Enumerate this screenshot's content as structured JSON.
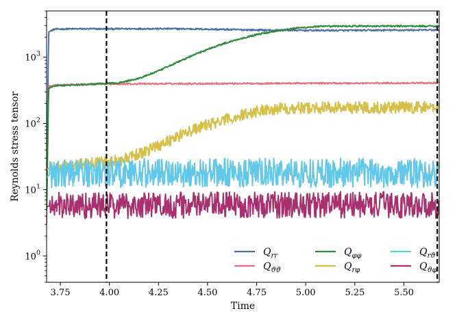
{
  "chart_data": {
    "type": "line",
    "title": "",
    "xlabel": "Time",
    "ylabel": "Reynolds stress tensor",
    "xlim": [
      3.68,
      5.68
    ],
    "ylim": [
      0.4,
      5000
    ],
    "yscale": "log",
    "grid": false,
    "legend_position": "bottom-right",
    "x_ticks": [
      3.75,
      4.0,
      4.25,
      4.5,
      4.75,
      5.0,
      5.25,
      5.5
    ],
    "x_tick_labels": [
      "3.75",
      "4.00",
      "4.25",
      "4.50",
      "4.75",
      "5.00",
      "5.25",
      "5.50"
    ],
    "y_ticks": [
      1,
      10,
      100,
      1000
    ],
    "y_tick_labels": [
      {
        "base": "10",
        "exp": "0"
      },
      {
        "base": "10",
        "exp": "1"
      },
      {
        "base": "10",
        "exp": "2"
      },
      {
        "base": "10",
        "exp": "3"
      }
    ],
    "vlines": [
      3.985,
      5.67
    ],
    "series": [
      {
        "name": "Q_rr",
        "label_main": "Q",
        "label_sub": "rr",
        "color": "#4a6fa5",
        "noise": 0.012,
        "x": [
          3.68,
          3.69,
          3.72,
          3.8,
          4.0,
          4.2,
          4.4,
          4.6,
          4.8,
          5.0,
          5.2,
          5.4,
          5.68
        ],
        "y": [
          5,
          2400,
          2650,
          2680,
          2680,
          2700,
          2680,
          2620,
          2560,
          2540,
          2540,
          2560,
          2580
        ]
      },
      {
        "name": "Q_ϑϑ",
        "label_main": "Q",
        "label_sub": "ϑϑ",
        "color": "#e8707e",
        "noise": 0.012,
        "x": [
          3.68,
          3.69,
          3.72,
          4.0,
          4.25,
          4.5,
          4.75,
          5.0,
          5.25,
          5.5,
          5.68
        ],
        "y": [
          3,
          360,
          380,
          395,
          398,
          400,
          402,
          405,
          405,
          408,
          410
        ]
      },
      {
        "name": "Q_φφ",
        "label_main": "Q",
        "label_sub": "φφ",
        "color": "#2e8b3a",
        "noise": 0.012,
        "x": [
          3.68,
          3.69,
          3.72,
          3.9,
          4.05,
          4.15,
          4.25,
          4.35,
          4.45,
          4.55,
          4.65,
          4.75,
          4.85,
          4.95,
          5.05,
          5.2,
          5.4,
          5.68
        ],
        "y": [
          5,
          340,
          370,
          390,
          410,
          480,
          620,
          850,
          1150,
          1500,
          1850,
          2200,
          2500,
          2750,
          2900,
          2950,
          2950,
          2950
        ]
      },
      {
        "name": "Q_rφ",
        "label_main": "Q",
        "label_sub": "rφ",
        "color": "#d4c04a",
        "noise": 0.09,
        "x": [
          3.68,
          3.7,
          3.8,
          3.9,
          4.0,
          4.1,
          4.2,
          4.3,
          4.4,
          4.5,
          4.6,
          4.7,
          4.8,
          4.9,
          5.0,
          5.2,
          5.4,
          5.68
        ],
        "y": [
          20,
          22,
          23,
          25,
          26,
          30,
          40,
          55,
          75,
          95,
          115,
          140,
          165,
          170,
          172,
          175,
          175,
          175
        ]
      },
      {
        "name": "Q_rϑ",
        "label_main": "Q",
        "label_sub": "rϑ",
        "color": "#62c8ea",
        "noise": 0.22,
        "x": [
          3.68,
          3.7,
          4.0,
          4.5,
          5.0,
          5.5,
          5.68
        ],
        "y": [
          15,
          18,
          18,
          18,
          18,
          18,
          17
        ]
      },
      {
        "name": "Q_ϑφ",
        "label_main": "Q",
        "label_sub": "ϑφ",
        "color": "#a8306e",
        "noise": 0.2,
        "x": [
          3.68,
          3.7,
          4.0,
          4.5,
          5.0,
          5.5,
          5.68
        ],
        "y": [
          5.5,
          5.8,
          5.8,
          5.9,
          5.9,
          5.9,
          5.9
        ]
      }
    ]
  }
}
